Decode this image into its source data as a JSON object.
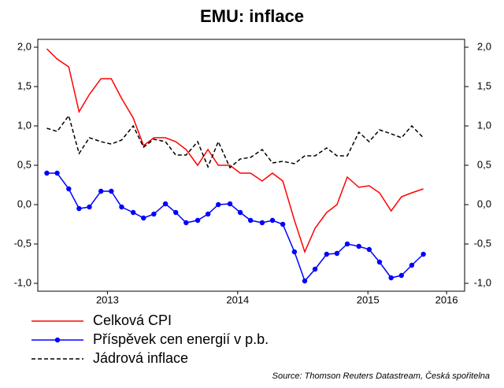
{
  "chart_data": {
    "type": "line",
    "title": "EMU: inflace",
    "x": [
      2013.0,
      2013.08,
      2013.17,
      2013.25,
      2013.33,
      2013.42,
      2013.5,
      2013.58,
      2013.67,
      2013.75,
      2013.83,
      2013.92,
      2014.0,
      2014.08,
      2014.17,
      2014.25,
      2014.33,
      2014.42,
      2014.5,
      2014.58,
      2014.67,
      2014.75,
      2014.83,
      2014.92,
      2015.0,
      2015.08,
      2015.17,
      2015.25,
      2015.33,
      2015.42,
      2015.5,
      2015.58,
      2015.67,
      2015.75,
      2015.83,
      2015.92
    ],
    "series": [
      {
        "name": "Celková CPI",
        "color": "#ff0000",
        "values": [
          1.98,
          1.85,
          1.75,
          1.18,
          1.4,
          1.6,
          1.6,
          1.35,
          1.1,
          0.75,
          0.85,
          0.85,
          0.8,
          0.7,
          0.5,
          0.7,
          0.5,
          0.5,
          0.4,
          0.4,
          0.3,
          0.4,
          0.3,
          -0.2,
          -0.6,
          -0.3,
          -0.1,
          0,
          0.35,
          0.22,
          0.24,
          0.15,
          -0.08,
          0.1,
          0.15,
          0.2
        ]
      },
      {
        "name": "Příspěvek cen energií v p.b.",
        "color": "#0000ff",
        "marker": true,
        "values": [
          0.4,
          0.4,
          0.2,
          -0.05,
          -0.03,
          0.17,
          0.17,
          -0.03,
          -0.1,
          -0.17,
          -0.12,
          0.01,
          -0.1,
          -0.23,
          -0.2,
          -0.12,
          0,
          0.01,
          -0.1,
          -0.2,
          -0.23,
          -0.2,
          -0.25,
          -0.6,
          -0.97,
          -0.82,
          -0.63,
          -0.62,
          -0.5,
          -0.53,
          -0.57,
          -0.73,
          -0.93,
          -0.9,
          -0.77,
          -0.63
        ]
      },
      {
        "name": "Jádrová inflace",
        "color": "#000000",
        "dashed": true,
        "values": [
          0.97,
          0.93,
          1.13,
          0.65,
          0.85,
          0.8,
          0.77,
          0.82,
          1.0,
          0.73,
          0.83,
          0.8,
          0.63,
          0.63,
          0.8,
          0.48,
          0.8,
          0.47,
          0.58,
          0.6,
          0.7,
          0.53,
          0.55,
          0.52,
          0.62,
          0.62,
          0.72,
          0.62,
          0.62,
          0.92,
          0.8,
          0.95,
          0.9,
          0.85,
          1.0,
          0.85
        ]
      }
    ],
    "xlim": [
      2012.93,
      2016.24
    ],
    "xticks": [
      {
        "value": 2013.47,
        "label": "2013"
      },
      {
        "value": 2014.48,
        "label": "2014"
      },
      {
        "value": 2015.49,
        "label": "2015"
      },
      {
        "value": 2016.1,
        "label": "2016"
      }
    ],
    "ylim": [
      -1.1,
      2.1
    ],
    "yticks": [
      {
        "value": 2,
        "label": "2,0"
      },
      {
        "value": 1.5,
        "label": "1,5"
      },
      {
        "value": 1,
        "label": "1,0"
      },
      {
        "value": 0.5,
        "label": "0,5"
      },
      {
        "value": 0,
        "label": "0,0"
      },
      {
        "value": -0.5,
        "label": "-0,5"
      },
      {
        "value": -1,
        "label": "-1,0"
      }
    ],
    "y2lim": [
      -1.1,
      2.1
    ],
    "y2ticks": [
      {
        "value": 2,
        "label": "2,0"
      },
      {
        "value": 1.5,
        "label": "1,5"
      },
      {
        "value": 1,
        "label": "1,0"
      },
      {
        "value": 0.5,
        "label": "0,5"
      },
      {
        "value": 0,
        "label": "0,0"
      },
      {
        "value": -0.5,
        "label": "-0,5"
      },
      {
        "value": -1,
        "label": "-1,0"
      }
    ],
    "source": "Source: Thomson Reuters Datastream, Česká spořitelna"
  }
}
